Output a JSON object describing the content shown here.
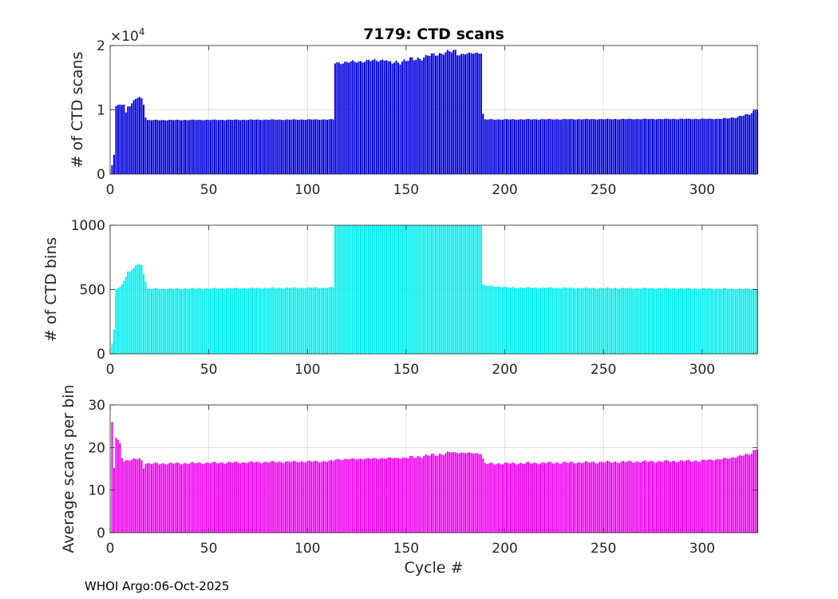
{
  "footer": "WHOI Argo:06-Oct-2025",
  "chart_data": [
    {
      "type": "bar",
      "title": "7179: CTD scans",
      "ylabel": "# of CTD scans",
      "xlabel": "",
      "exponent_label": "×10",
      "exponent_power": "4",
      "xlim": [
        0,
        328
      ],
      "ylim": [
        0,
        20000
      ],
      "xticks": [
        0,
        50,
        100,
        150,
        200,
        250,
        300
      ],
      "yticks": [
        0,
        10000,
        20000
      ],
      "ytick_labels": [
        "0",
        "1",
        "2"
      ],
      "grid": true,
      "color": "#0000dd",
      "segments": [
        {
          "x": [
            1,
            1
          ],
          "y": [
            1400,
            1400
          ]
        },
        {
          "x": [
            2,
            2
          ],
          "y": [
            3000,
            3000
          ]
        },
        {
          "x": [
            3,
            3
          ],
          "y": [
            10600,
            10600
          ]
        },
        {
          "x": [
            4,
            7
          ],
          "y": [
            10700,
            10900
          ]
        },
        {
          "x": [
            8,
            8
          ],
          "y": [
            9600,
            9600
          ]
        },
        {
          "x": [
            9,
            12
          ],
          "y": [
            10500,
            11200
          ]
        },
        {
          "x": [
            13,
            15
          ],
          "y": [
            11700,
            12000
          ]
        },
        {
          "x": [
            16,
            16
          ],
          "y": [
            11800,
            11800
          ]
        },
        {
          "x": [
            17,
            17
          ],
          "y": [
            10800,
            10800
          ]
        },
        {
          "x": [
            18,
            18
          ],
          "y": [
            8800,
            8800
          ]
        },
        {
          "x": [
            19,
            113
          ],
          "y": [
            8400,
            8500
          ]
        },
        {
          "x": [
            114,
            114
          ],
          "y": [
            17200,
            17200
          ]
        },
        {
          "x": [
            115,
            140
          ],
          "y": [
            17300,
            17800
          ]
        },
        {
          "x": [
            141,
            160
          ],
          "y": [
            17200,
            18200
          ]
        },
        {
          "x": [
            161,
            175
          ],
          "y": [
            18400,
            19200
          ]
        },
        {
          "x": [
            176,
            188
          ],
          "y": [
            18600,
            18900
          ]
        },
        {
          "x": [
            189,
            189
          ],
          "y": [
            9400,
            9400
          ]
        },
        {
          "x": [
            190,
            310
          ],
          "y": [
            8500,
            8600
          ]
        },
        {
          "x": [
            311,
            318
          ],
          "y": [
            8600,
            8900
          ]
        },
        {
          "x": [
            319,
            324
          ],
          "y": [
            9000,
            9300
          ]
        },
        {
          "x": [
            325,
            328
          ],
          "y": [
            9600,
            10200
          ]
        }
      ]
    },
    {
      "type": "bar",
      "ylabel": "# of CTD bins",
      "xlabel": "",
      "xlim": [
        0,
        328
      ],
      "ylim": [
        0,
        1000
      ],
      "xticks": [
        0,
        50,
        100,
        150,
        200,
        250,
        300
      ],
      "yticks": [
        0,
        500,
        1000
      ],
      "ytick_labels": [
        "0",
        "500",
        "1000"
      ],
      "grid": true,
      "color": "#00eeee",
      "segments": [
        {
          "x": [
            1,
            1
          ],
          "y": [
            80,
            80
          ]
        },
        {
          "x": [
            2,
            2
          ],
          "y": [
            190,
            190
          ]
        },
        {
          "x": [
            3,
            5
          ],
          "y": [
            500,
            520
          ]
        },
        {
          "x": [
            6,
            8
          ],
          "y": [
            540,
            600
          ]
        },
        {
          "x": [
            9,
            12
          ],
          "y": [
            640,
            660
          ]
        },
        {
          "x": [
            13,
            15
          ],
          "y": [
            690,
            700
          ]
        },
        {
          "x": [
            16,
            16
          ],
          "y": [
            690,
            690
          ]
        },
        {
          "x": [
            17,
            17
          ],
          "y": [
            620,
            620
          ]
        },
        {
          "x": [
            18,
            18
          ],
          "y": [
            560,
            560
          ]
        },
        {
          "x": [
            19,
            113
          ],
          "y": [
            505,
            515
          ]
        },
        {
          "x": [
            114,
            188
          ],
          "y": [
            1000,
            1000
          ]
        },
        {
          "x": [
            189,
            189
          ],
          "y": [
            540,
            540
          ]
        },
        {
          "x": [
            190,
            200
          ],
          "y": [
            530,
            520
          ]
        },
        {
          "x": [
            201,
            328
          ],
          "y": [
            515,
            505
          ]
        }
      ]
    },
    {
      "type": "bar",
      "ylabel": "Average scans per bin",
      "xlabel": "Cycle #",
      "xlim": [
        0,
        328
      ],
      "ylim": [
        0,
        30
      ],
      "xticks": [
        0,
        50,
        100,
        150,
        200,
        250,
        300
      ],
      "yticks": [
        0,
        10,
        20,
        30
      ],
      "ytick_labels": [
        "0",
        "10",
        "20",
        "30"
      ],
      "grid": true,
      "color": "#ee00ee",
      "segments": [
        {
          "x": [
            1,
            1
          ],
          "y": [
            26,
            26
          ]
        },
        {
          "x": [
            2,
            2
          ],
          "y": [
            15.2,
            15.2
          ]
        },
        {
          "x": [
            3,
            3
          ],
          "y": [
            22.3,
            22.3
          ]
        },
        {
          "x": [
            4,
            4
          ],
          "y": [
            21.8,
            21.8
          ]
        },
        {
          "x": [
            5,
            5
          ],
          "y": [
            21,
            21
          ]
        },
        {
          "x": [
            6,
            6
          ],
          "y": [
            17.5,
            17.5
          ]
        },
        {
          "x": [
            7,
            15
          ],
          "y": [
            16.9,
            17.4
          ]
        },
        {
          "x": [
            16,
            16
          ],
          "y": [
            17,
            17
          ]
        },
        {
          "x": [
            17,
            17
          ],
          "y": [
            15.1,
            15.1
          ]
        },
        {
          "x": [
            18,
            18
          ],
          "y": [
            16.2,
            16.2
          ]
        },
        {
          "x": [
            19,
            113
          ],
          "y": [
            16.2,
            16.8
          ]
        },
        {
          "x": [
            114,
            150
          ],
          "y": [
            17.2,
            17.6
          ]
        },
        {
          "x": [
            151,
            170
          ],
          "y": [
            17.6,
            18.6
          ]
        },
        {
          "x": [
            171,
            188
          ],
          "y": [
            18.9,
            18.6
          ]
        },
        {
          "x": [
            189,
            189
          ],
          "y": [
            17.4,
            17.4
          ]
        },
        {
          "x": [
            190,
            300
          ],
          "y": [
            16.2,
            16.9
          ]
        },
        {
          "x": [
            301,
            315
          ],
          "y": [
            17,
            17.5
          ]
        },
        {
          "x": [
            316,
            324
          ],
          "y": [
            17.8,
            18.4
          ]
        },
        {
          "x": [
            325,
            328
          ],
          "y": [
            18.8,
            20
          ]
        }
      ]
    }
  ]
}
